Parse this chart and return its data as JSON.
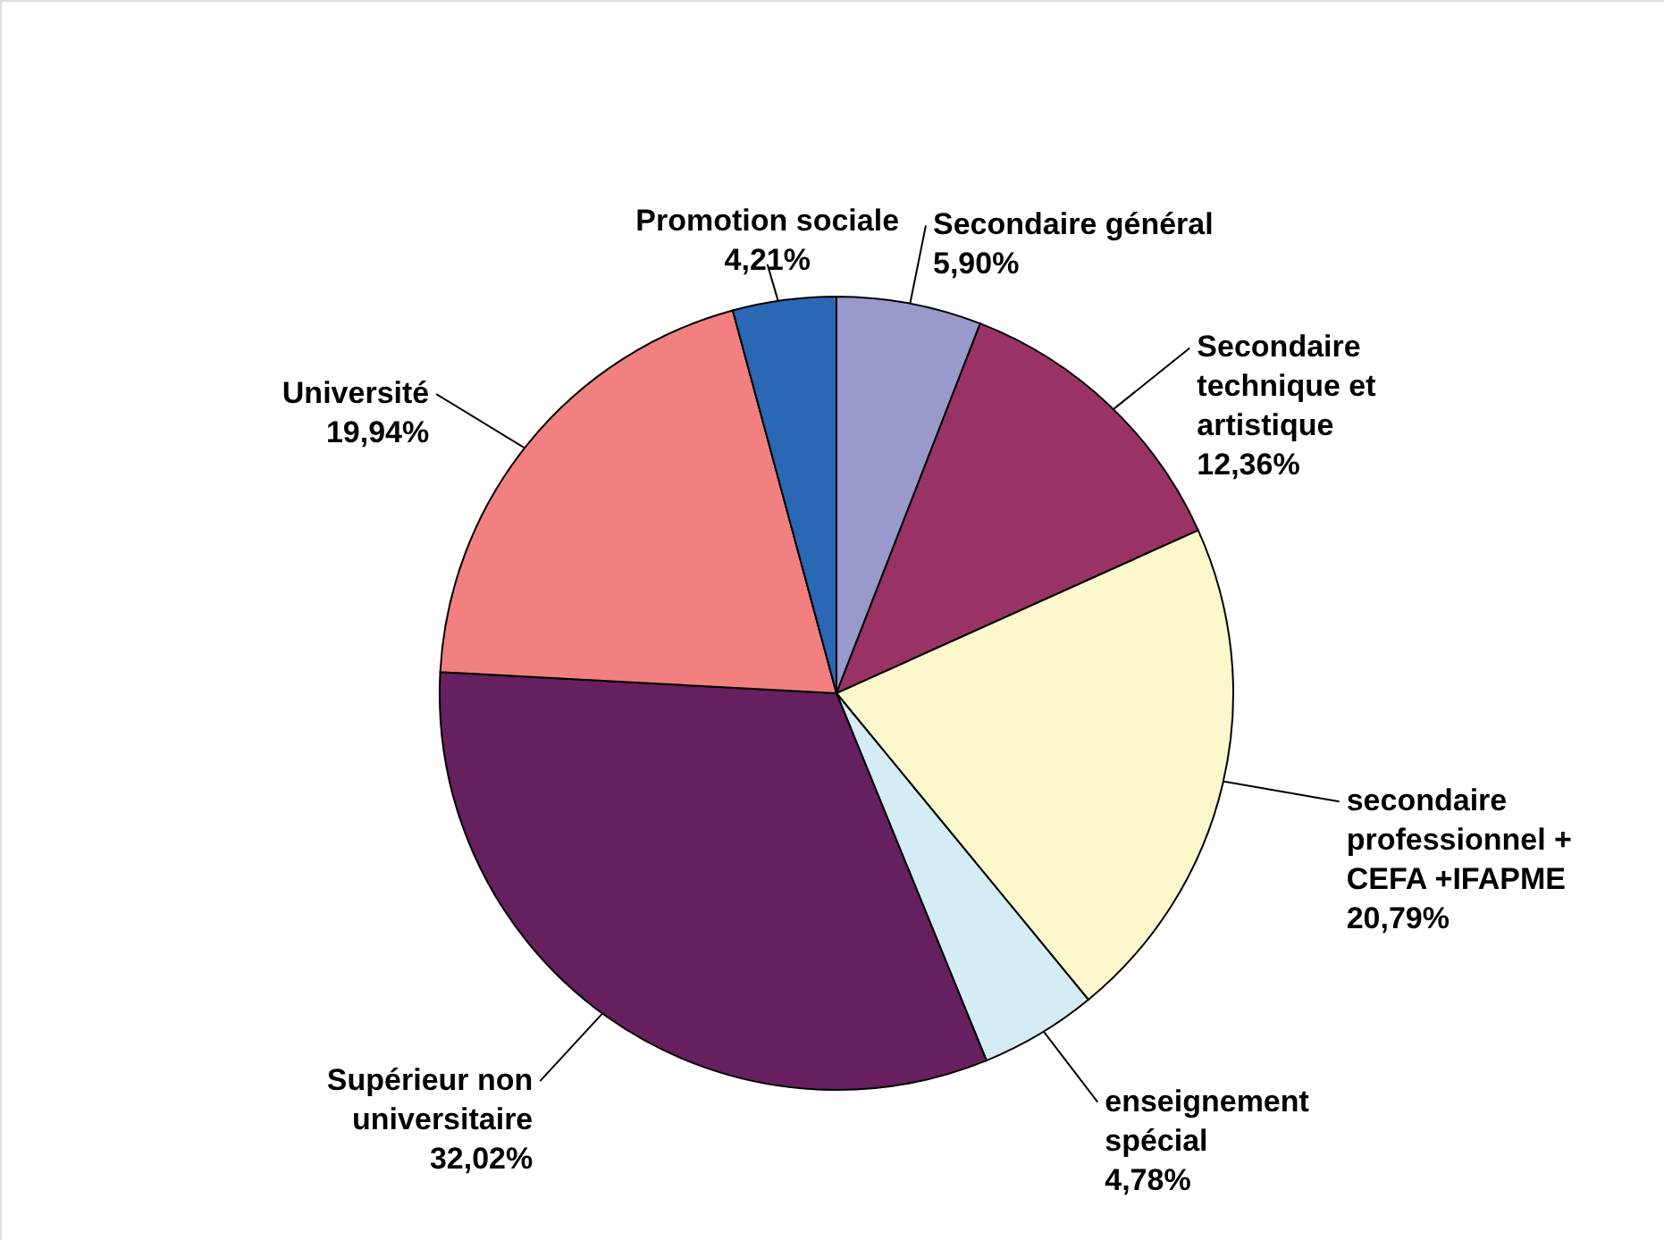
{
  "chart_data": {
    "type": "pie",
    "categories": [
      "Secondaire général",
      "Secondaire technique et artistique",
      "secondaire professionnel + CEFA +IFAPME",
      "enseignement spécial",
      "Supérieur non universitaire",
      "Université",
      "Promotion sociale"
    ],
    "values": [
      5.9,
      12.36,
      20.79,
      4.78,
      32.02,
      19.94,
      4.21
    ],
    "value_labels": [
      "5,90%",
      "12,36%",
      "20,79%",
      "4,78%",
      "32,02%",
      "19,94%",
      "4,21%"
    ],
    "colors": [
      "#9999cc",
      "#993366",
      "#fbf9cc",
      "#d4ecf4",
      "#661f5f",
      "#f28080",
      "#2a67b5"
    ]
  }
}
